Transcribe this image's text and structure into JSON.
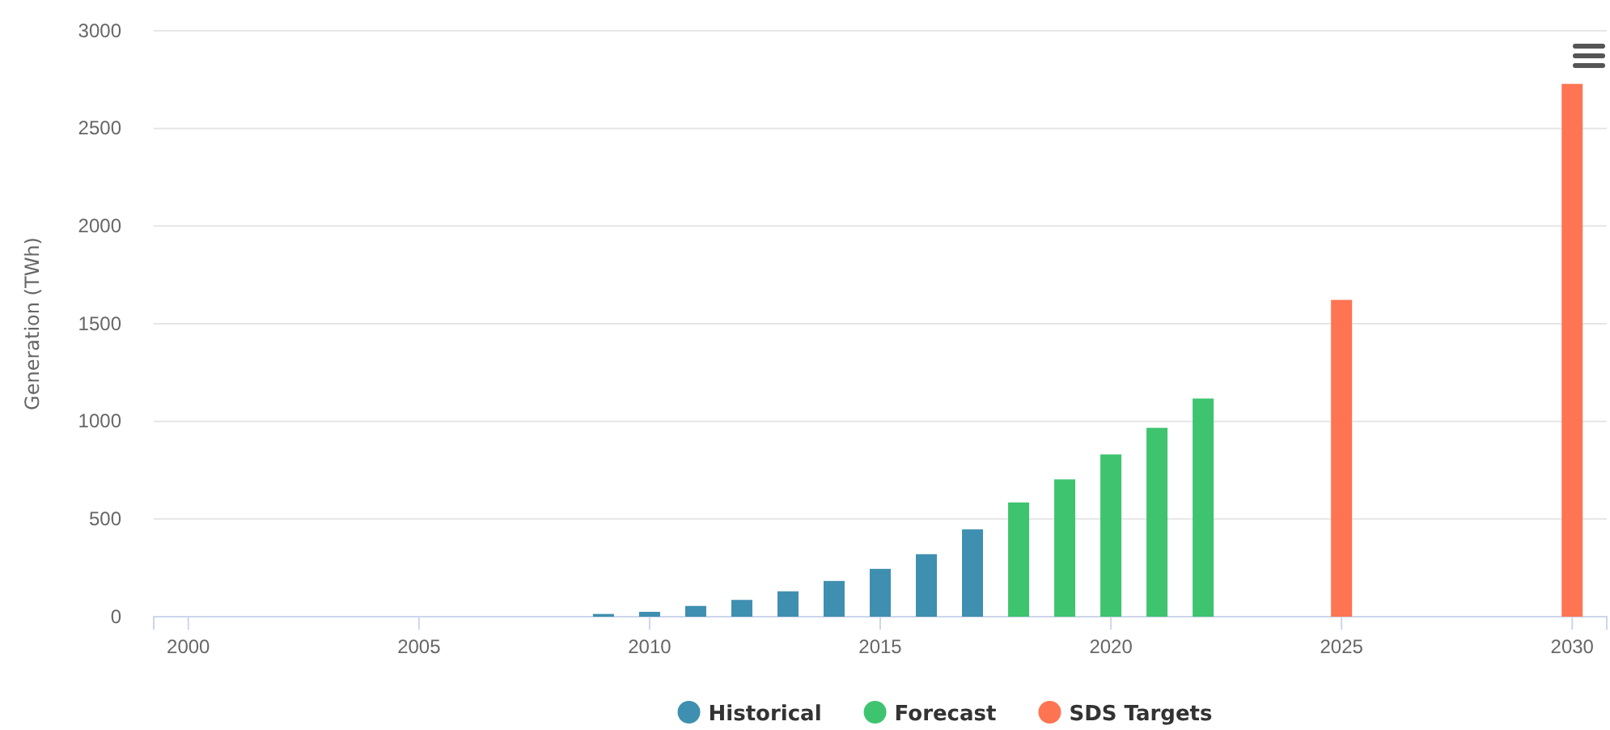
{
  "chart_data": {
    "type": "bar",
    "ylabel": "Generation (TWh)",
    "xlim": [
      1999.25,
      2030.75
    ],
    "xticks": [
      2000,
      2005,
      2010,
      2015,
      2020,
      2025,
      2030
    ],
    "ylim": [
      0,
      3000
    ],
    "yticks": [
      0,
      500,
      1000,
      1500,
      2000,
      2500,
      3000
    ],
    "grid": "y",
    "legend": "bottom",
    "series": [
      {
        "name": "Historical",
        "color": "#3f8fb0",
        "x": [
          2009,
          2010,
          2011,
          2012,
          2013,
          2014,
          2015,
          2016,
          2017
        ],
        "values": [
          14,
          25,
          55,
          86,
          130,
          183,
          245,
          320,
          447
        ]
      },
      {
        "name": "Forecast",
        "color": "#3ec46f",
        "x": [
          2018,
          2019,
          2020,
          2021,
          2022
        ],
        "values": [
          585,
          703,
          831,
          967,
          1117
        ]
      },
      {
        "name": "SDS Targets",
        "color": "#ff7452",
        "x": [
          2025,
          2030
        ],
        "values": [
          1622,
          2728
        ]
      }
    ]
  }
}
